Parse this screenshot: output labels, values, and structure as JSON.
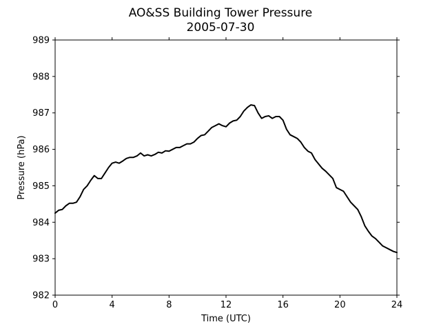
{
  "chart_data": {
    "type": "line",
    "title": "AO&SS Building Tower Pressure",
    "subtitle": "2005-07-30",
    "xlabel": "Time (UTC)",
    "ylabel": "Pressure (hPa)",
    "xlim": [
      0,
      24
    ],
    "ylim": [
      982,
      989
    ],
    "xticks": [
      0,
      4,
      8,
      12,
      16,
      20,
      24
    ],
    "yticks": [
      982,
      983,
      984,
      985,
      986,
      987,
      988,
      989
    ],
    "grid": false,
    "line_color": "#000000",
    "series": [
      {
        "x": [
          0,
          0.25,
          0.5,
          0.75,
          1.0,
          1.25,
          1.5,
          1.75,
          2.0,
          2.25,
          2.5,
          2.75,
          3.0,
          3.25,
          3.5,
          3.75,
          4.0,
          4.25,
          4.5,
          4.75,
          5.0,
          5.25,
          5.5,
          5.75,
          6.0,
          6.25,
          6.5,
          6.75,
          7.0,
          7.25,
          7.5,
          7.75,
          8.0,
          8.25,
          8.5,
          8.75,
          9.0,
          9.25,
          9.5,
          9.75,
          10.0,
          10.25,
          10.5,
          10.75,
          11.0,
          11.25,
          11.5,
          11.75,
          12.0,
          12.25,
          12.5,
          12.75,
          13.0,
          13.25,
          13.5,
          13.75,
          14.0,
          14.25,
          14.5,
          14.75,
          15.0,
          15.25,
          15.5,
          15.75,
          16.0,
          16.25,
          16.5,
          16.75,
          17.0,
          17.25,
          17.5,
          17.75,
          18.0,
          18.25,
          18.5,
          18.75,
          19.0,
          19.25,
          19.5,
          19.75,
          20.0,
          20.25,
          20.5,
          20.75,
          21.0,
          21.25,
          21.5,
          21.75,
          22.0,
          22.25,
          22.5,
          22.75,
          23.0,
          23.25,
          23.5,
          23.75,
          24.0
        ],
        "y": [
          984.25,
          984.33,
          984.35,
          984.45,
          984.52,
          984.52,
          984.55,
          984.7,
          984.9,
          985.0,
          985.15,
          985.28,
          985.2,
          985.2,
          985.35,
          985.5,
          985.62,
          985.65,
          985.62,
          985.68,
          985.75,
          985.78,
          985.78,
          985.82,
          985.9,
          985.82,
          985.85,
          985.82,
          985.86,
          985.92,
          985.9,
          985.96,
          985.95,
          986.0,
          986.05,
          986.05,
          986.1,
          986.15,
          986.15,
          986.2,
          986.3,
          986.38,
          986.4,
          986.5,
          986.6,
          986.65,
          986.7,
          986.65,
          986.62,
          986.72,
          986.78,
          986.8,
          986.9,
          987.05,
          987.15,
          987.22,
          987.2,
          987.0,
          986.85,
          986.9,
          986.92,
          986.85,
          986.9,
          986.9,
          986.8,
          986.55,
          986.4,
          986.35,
          986.3,
          986.2,
          986.05,
          985.95,
          985.9,
          985.72,
          985.6,
          985.48,
          985.4,
          985.3,
          985.2,
          984.95,
          984.9,
          984.85,
          984.7,
          984.55,
          984.45,
          984.35,
          984.15,
          983.9,
          983.75,
          983.62,
          983.55,
          983.45,
          983.35,
          983.3,
          983.25,
          983.2,
          983.17
        ]
      }
    ]
  }
}
